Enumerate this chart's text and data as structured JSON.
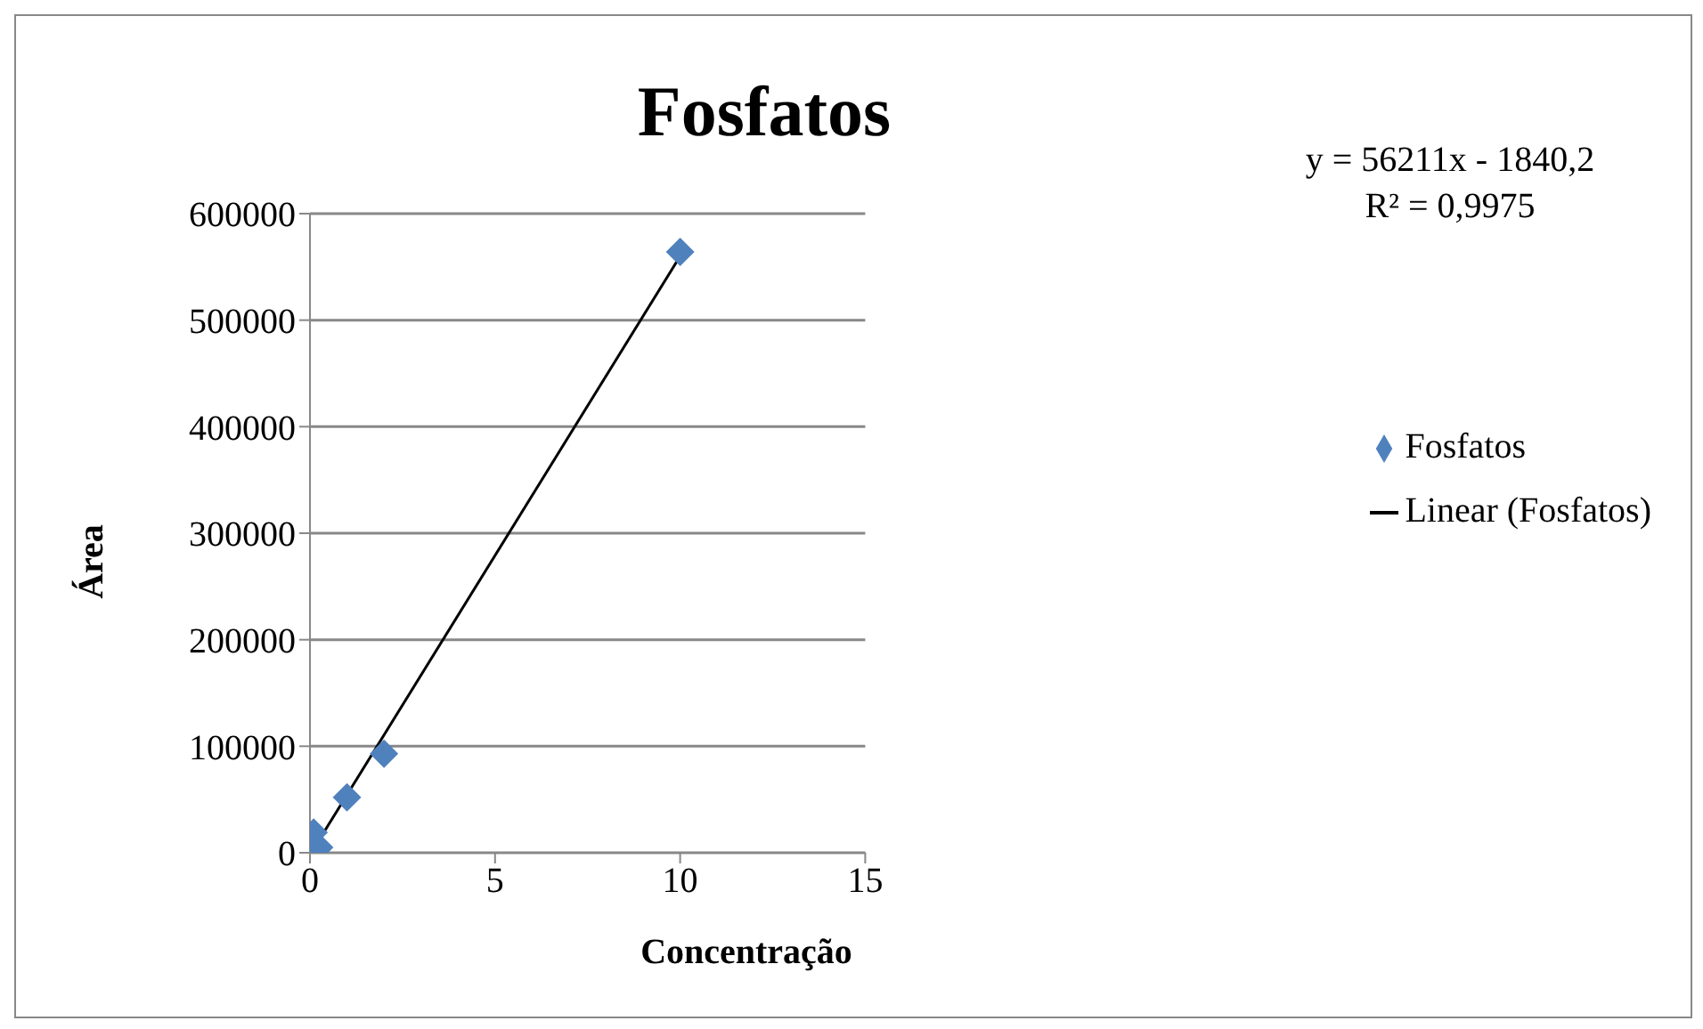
{
  "chart_data": {
    "type": "scatter",
    "title": "Fosfatos",
    "xlabel": "Concentração",
    "ylabel": "Área",
    "annotations": [
      "y = 56211x - 1840,2",
      "R² = 0,9975"
    ],
    "series": [
      {
        "name": "Fosfatos",
        "color": "#4f81bd",
        "x": [
          0.1,
          0.25,
          1,
          2,
          10
        ],
        "values": [
          19000,
          5000,
          52000,
          93000,
          564000
        ],
        "marker": "diamond"
      },
      {
        "name": "Linear (Fosfatos)",
        "type": "line",
        "color": "#000000",
        "x": [
          0.1,
          10
        ],
        "values": [
          3800,
          560000
        ],
        "marker": "none"
      }
    ],
    "xlim": [
      0,
      15
    ],
    "xticks": [
      0,
      5,
      10,
      15
    ],
    "ylim": [
      0,
      600000
    ],
    "yticks": [
      0,
      100000,
      200000,
      300000,
      400000,
      500000,
      600000
    ],
    "grid": "y",
    "legend": "right"
  }
}
